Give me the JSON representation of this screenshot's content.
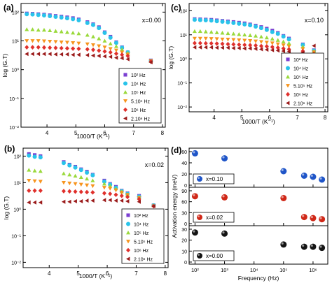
{
  "panels": [
    {
      "label": "(a)",
      "composition": "x=0.00"
    },
    {
      "label": "(c)",
      "composition": "x=0.10"
    },
    {
      "label": "(b)",
      "composition": "x=0.02"
    },
    {
      "label": "(d)",
      "composition": ""
    }
  ],
  "colors": {
    "102": "#7b3fd1",
    "104": "#29c3ea",
    "105": "#9ad93b",
    "5e5": "#f7941d",
    "1e6": "#e0302c",
    "2e6": "#9b1b1b",
    "ball_010": "#1f55c8",
    "ball_002": "#d02818",
    "ball_000": "#141414"
  },
  "chart_data": [
    {
      "type": "scatter",
      "panel": "(a)",
      "xlabel": "1000/T (K⁻¹)",
      "ylabel": "log (G.T)",
      "xlim": [
        3.1,
        8.1
      ],
      "ylim_log10": [
        -2,
        2.3
      ],
      "y_scale": "log",
      "x_ticks": [
        "4",
        "5",
        "6",
        "7",
        "8"
      ],
      "y_ticks": [
        "10⁻²",
        "10⁻¹",
        "10⁰",
        "10¹",
        "10²"
      ],
      "legend_position": "lower-right",
      "annotation": "x=0.00",
      "series": [
        {
          "name": "10² Hz",
          "marker": "square",
          "x": [
            3.3,
            3.5,
            3.7,
            3.9,
            4.1,
            4.3,
            4.5,
            4.7,
            4.9,
            5.1,
            5.4,
            5.6,
            5.8,
            6.0,
            6.2,
            6.4,
            6.6,
            6.8,
            7.6
          ],
          "y": [
            90,
            88,
            85,
            82,
            78,
            74,
            70,
            66,
            62,
            56,
            45,
            38,
            30,
            20,
            14,
            9,
            6,
            4,
            2.1
          ]
        },
        {
          "name": "10⁴ Hz",
          "marker": "circle",
          "x": [
            3.3,
            3.5,
            3.7,
            3.9,
            4.1,
            4.3,
            4.5,
            4.7,
            4.9,
            5.1,
            5.4,
            5.6,
            5.8,
            6.0,
            6.2,
            6.4,
            6.6,
            6.8,
            7.6
          ],
          "y": [
            85,
            83,
            80,
            77,
            73,
            69,
            65,
            61,
            57,
            52,
            42,
            36,
            28,
            19,
            13,
            8.5,
            5.8,
            4,
            2
          ]
        },
        {
          "name": "10⁵ Hz",
          "marker": "triangle-up",
          "x": [
            3.3,
            3.5,
            3.7,
            3.9,
            4.1,
            4.3,
            4.5,
            4.7,
            4.9,
            5.1,
            5.4,
            5.6,
            5.8,
            6.0,
            6.2,
            6.4,
            6.6,
            6.8,
            7.6
          ],
          "y": [
            25,
            25,
            24,
            24,
            23,
            22,
            21,
            20,
            19,
            18,
            16,
            14,
            12,
            10,
            8,
            6.5,
            5,
            3.8,
            2
          ]
        },
        {
          "name": "5.10⁵ Hz",
          "marker": "triangle-down",
          "x": [
            3.3,
            3.5,
            3.7,
            3.9,
            4.1,
            4.3,
            4.5,
            4.7,
            4.9,
            5.1,
            5.4,
            5.6,
            5.8,
            6.0,
            6.2,
            6.4,
            6.6,
            6.8,
            7.6
          ],
          "y": [
            10,
            10,
            10,
            9.8,
            9.5,
            9.3,
            9,
            8.8,
            8.5,
            8.2,
            7.7,
            7.2,
            6.6,
            6,
            5.3,
            4.7,
            4,
            3.4,
            2
          ]
        },
        {
          "name": "10⁶ Hz",
          "marker": "diamond",
          "x": [
            3.3,
            3.5,
            3.7,
            3.9,
            4.1,
            4.3,
            4.5,
            4.7,
            4.9,
            5.1,
            5.4,
            5.6,
            5.8,
            6.0,
            6.2,
            6.4,
            6.6,
            6.8,
            7.6
          ],
          "y": [
            6,
            6,
            6,
            5.9,
            5.8,
            5.7,
            5.6,
            5.5,
            5.4,
            5.3,
            5.1,
            4.9,
            4.6,
            4.3,
            4,
            3.6,
            3.3,
            3,
            1.9
          ]
        },
        {
          "name": "2.10⁶ Hz",
          "marker": "triangle-left",
          "x": [
            3.3,
            3.5,
            3.7,
            3.9,
            4.1,
            4.3,
            4.5,
            4.7,
            4.9,
            5.1,
            5.4,
            5.6,
            5.8,
            6.0,
            6.2,
            6.4,
            6.6,
            6.8,
            7.6
          ],
          "y": [
            3.5,
            3.5,
            3.5,
            3.5,
            3.5,
            3.4,
            3.4,
            3.4,
            3.3,
            3.3,
            3.2,
            3.1,
            3,
            2.9,
            2.8,
            2.6,
            2.5,
            2.3,
            1.8
          ]
        }
      ]
    },
    {
      "type": "scatter",
      "panel": "(c)",
      "xlabel": "1000/T (K⁻¹)",
      "ylabel": "log (G.T)",
      "xlim": [
        3.1,
        8.1
      ],
      "ylim_log10": [
        -2.2,
        2.3
      ],
      "y_scale": "log",
      "x_ticks": [
        "4",
        "5",
        "6",
        "7",
        "8"
      ],
      "y_ticks": [
        "10⁻²",
        "10⁻¹",
        "10⁰",
        "10¹",
        "10²"
      ],
      "legend_position": "lower-right",
      "annotation": "x=0.10",
      "series": [
        {
          "name": "10² Hz",
          "marker": "square",
          "x": [
            3.3,
            3.5,
            3.7,
            3.9,
            4.1,
            4.3,
            4.5,
            4.7,
            4.9,
            5.1,
            5.3,
            5.5,
            5.7,
            5.9,
            6.1,
            6.3,
            6.5,
            6.7,
            7.2,
            7.6
          ],
          "y": [
            45,
            44,
            43,
            42,
            40,
            38,
            36,
            34,
            32,
            30,
            27,
            24,
            21,
            18,
            15,
            12,
            9,
            7,
            4,
            2.3
          ]
        },
        {
          "name": "10⁴ Hz",
          "marker": "circle",
          "x": [
            3.3,
            3.5,
            3.7,
            3.9,
            4.1,
            4.3,
            4.5,
            4.7,
            4.9,
            5.1,
            5.3,
            5.5,
            5.7,
            5.9,
            6.1,
            6.3,
            6.5,
            6.7,
            7.2,
            7.6
          ],
          "y": [
            42,
            41,
            40,
            39,
            37,
            35,
            33,
            31,
            29,
            27,
            25,
            22,
            19,
            16,
            13,
            11,
            8.5,
            6.5,
            3.8,
            2.2
          ]
        },
        {
          "name": "10⁵ Hz",
          "marker": "triangle-up",
          "x": [
            3.3,
            3.5,
            3.7,
            3.9,
            4.1,
            4.3,
            4.5,
            4.7,
            4.9,
            5.1,
            5.3,
            5.5,
            5.7,
            5.9,
            6.1,
            6.3,
            6.5,
            6.7,
            7.2,
            7.6
          ],
          "y": [
            14,
            14,
            13.5,
            13,
            12.5,
            12,
            11.5,
            11,
            10.5,
            10,
            9.5,
            9,
            8.3,
            7.6,
            6.8,
            6,
            5.2,
            4.5,
            3.2,
            2.1
          ]
        },
        {
          "name": "5.10⁵ Hz",
          "marker": "triangle-down",
          "x": [
            3.3,
            3.5,
            3.7,
            3.9,
            4.1,
            4.3,
            4.5,
            4.7,
            4.9,
            5.1,
            5.3,
            5.5,
            5.7,
            5.9,
            6.1,
            6.3,
            6.5,
            6.7,
            7.2,
            7.6
          ],
          "y": [
            7,
            7,
            7,
            6.8,
            6.7,
            6.5,
            6.4,
            6.2,
            6,
            5.8,
            5.6,
            5.4,
            5.1,
            4.8,
            4.5,
            4.1,
            3.7,
            3.3,
            2.6,
            1.9
          ]
        },
        {
          "name": "10⁶ Hz",
          "marker": "diamond",
          "x": [
            3.3,
            3.5,
            3.7,
            3.9,
            4.1,
            4.3,
            4.5,
            4.7,
            4.9,
            5.1,
            5.3,
            5.5,
            5.7,
            5.9,
            6.1,
            6.3,
            6.5,
            6.7,
            7.2,
            7.6
          ],
          "y": [
            4.5,
            4.5,
            4.4,
            4.4,
            4.3,
            4.2,
            4.1,
            4,
            3.9,
            3.8,
            3.7,
            3.6,
            3.4,
            3.3,
            3.1,
            2.9,
            2.7,
            2.5,
            2.1,
            1.6
          ]
        },
        {
          "name": "2.10⁶ Hz",
          "marker": "triangle-left",
          "x": [
            3.3,
            3.5,
            3.7,
            3.9,
            4.1,
            4.3,
            4.5,
            4.7,
            4.9,
            5.1,
            5.3,
            5.5,
            5.7,
            5.9,
            6.1,
            6.3,
            6.5,
            6.7,
            7.2,
            7.6
          ],
          "y": [
            3,
            3,
            3,
            3,
            2.9,
            2.9,
            2.9,
            2.8,
            2.8,
            2.7,
            2.7,
            2.6,
            2.5,
            2.4,
            2.3,
            2.2,
            2.1,
            2,
            1.8,
            3.5
          ]
        }
      ]
    },
    {
      "type": "scatter",
      "panel": "(b)",
      "xlabel": "1000/T (K⁻¹)",
      "ylabel": "log (G.T)",
      "xlim": [
        3.1,
        8.1
      ],
      "ylim_log10": [
        -2.2,
        2.3
      ],
      "y_scale": "log",
      "x_ticks": [
        "4",
        "5",
        "6",
        "7",
        "8"
      ],
      "y_ticks": [
        "10⁻²",
        "10⁻¹",
        "10⁰",
        "10¹",
        "10²"
      ],
      "legend_position": "lower-right",
      "annotation": "x=0.02",
      "series": [
        {
          "name": "10² Hz",
          "marker": "square",
          "x": [
            3.3,
            3.5,
            3.7,
            4.5,
            4.7,
            4.9,
            5.1,
            5.3,
            5.5,
            5.9,
            6.1,
            6.3,
            6.5,
            6.7,
            7.1,
            7.6
          ],
          "y": [
            120,
            110,
            100,
            60,
            48,
            40,
            32,
            26,
            20,
            12,
            9,
            7,
            5,
            4,
            3.2,
            1.4
          ]
        },
        {
          "name": "10⁴ Hz",
          "marker": "circle",
          "x": [
            3.3,
            3.5,
            3.7,
            4.5,
            4.7,
            4.9,
            5.1,
            5.3,
            5.5,
            5.9,
            6.1,
            6.3,
            6.5,
            6.7,
            7.1,
            7.6
          ],
          "y": [
            105,
            95,
            90,
            55,
            45,
            37,
            30,
            24,
            19,
            11,
            8.5,
            6.5,
            4.8,
            3.8,
            3,
            1.4
          ]
        },
        {
          "name": "10⁵ Hz",
          "marker": "triangle-up",
          "x": [
            3.3,
            3.5,
            3.7,
            4.5,
            4.7,
            4.9,
            5.1,
            5.3,
            5.5,
            5.9,
            6.1,
            6.3,
            6.5,
            6.7,
            7.1,
            7.6
          ],
          "y": [
            30,
            28,
            27,
            22,
            20,
            18,
            16,
            14,
            12,
            9,
            7.5,
            6,
            4.6,
            3.6,
            2.8,
            1.4
          ]
        },
        {
          "name": "5.10⁵ Hz",
          "marker": "triangle-down",
          "x": [
            3.3,
            3.5,
            3.7,
            4.5,
            4.7,
            4.9,
            5.1,
            5.3,
            5.5,
            5.9,
            6.1,
            6.3,
            6.5,
            6.7,
            7.1,
            7.6
          ],
          "y": [
            12,
            11.5,
            11,
            10,
            9.5,
            9,
            8.5,
            8,
            7.5,
            6.5,
            6,
            5.2,
            4.3,
            3.5,
            2.7,
            1.3
          ]
        },
        {
          "name": "10⁶ Hz",
          "marker": "diamond",
          "x": [
            3.3,
            3.5,
            3.7,
            4.5,
            4.7,
            4.9,
            5.1,
            5.3,
            5.5,
            5.9,
            6.1,
            6.3,
            6.5,
            6.7,
            7.1,
            7.6
          ],
          "y": [
            5,
            5,
            5,
            4.8,
            4.7,
            4.6,
            4.5,
            4.4,
            4.3,
            4,
            3.8,
            3.5,
            3.2,
            2.9,
            2.4,
            1.3
          ]
        },
        {
          "name": "2.10⁶ Hz",
          "marker": "triangle-left",
          "x": [
            3.3,
            3.5,
            3.7,
            4.5,
            4.7,
            4.9,
            5.1,
            5.3,
            5.5,
            5.9,
            6.1,
            6.3,
            6.5,
            6.7,
            7.1,
            7.6
          ],
          "y": [
            1.8,
            1.8,
            1.8,
            1.9,
            1.9,
            2,
            2,
            2.1,
            2.1,
            2.2,
            2.2,
            2.1,
            2.1,
            2,
            1.9,
            1.3
          ]
        }
      ]
    },
    {
      "type": "scatter",
      "panel": "(d)",
      "xlabel": "Frequency (Hz)",
      "ylabel": "Activation energy (meV)",
      "x_scale": "log",
      "xlim_log10": [
        1.8,
        6.5
      ],
      "x_ticks": [
        "10²",
        "10³",
        "10⁴",
        "10⁵",
        "10⁶"
      ],
      "subplots": [
        {
          "legend": "x=0.10",
          "ylim": [
            0,
            60
          ],
          "y_ticks": [
            "0",
            "20",
            "40",
            "60"
          ],
          "x": [
            100,
            1000,
            100000,
            500000,
            1000000,
            2000000
          ],
          "y": [
            57,
            48,
            25,
            17,
            15,
            10
          ]
        },
        {
          "legend": "x=0.02",
          "ylim": [
            0,
            90
          ],
          "y_ticks": [
            "0",
            "30",
            "60",
            "90"
          ],
          "x": [
            100,
            1000,
            100000,
            500000,
            1000000,
            2000000
          ],
          "y": [
            75,
            72,
            70,
            18,
            15,
            12
          ]
        },
        {
          "legend": "x=0.00",
          "ylim": [
            0,
            30
          ],
          "y_ticks": [
            "0",
            "10",
            "20",
            "30"
          ],
          "x": [
            100,
            1000,
            100000,
            500000,
            1000000,
            2000000
          ],
          "y": [
            27,
            26,
            16,
            14,
            14,
            13
          ]
        }
      ]
    }
  ]
}
